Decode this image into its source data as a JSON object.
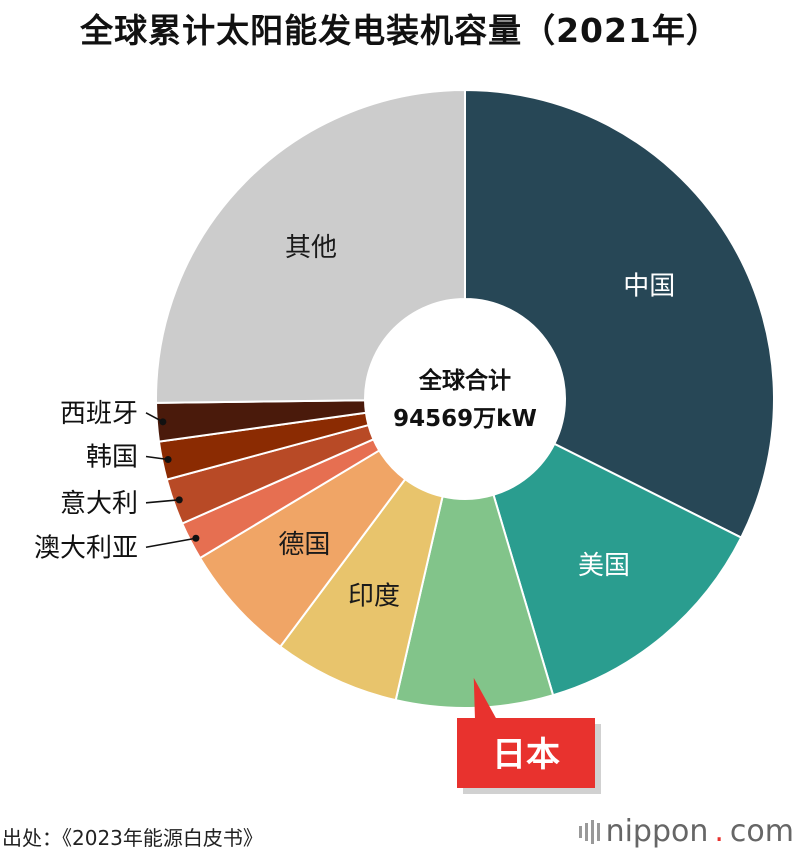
{
  "title": "全球累计太阳能发电装机容量（2021年）",
  "center": {
    "line1": "全球合计",
    "line2": "94569万kW"
  },
  "source": "出处：《2023年能源白皮书》",
  "logo": {
    "word": "nippon",
    "dot": ".",
    "tld": "com"
  },
  "highlight": {
    "label": "日本",
    "color": "#e8322e"
  },
  "chart_data": {
    "type": "pie",
    "title": "全球累计太阳能发电装机容量（2021年）",
    "subtitle": "全球合计 94569万kW",
    "slices": [
      {
        "label": "中国",
        "percent": 32.4,
        "color": "#274756"
      },
      {
        "label": "美国",
        "percent": 13.0,
        "color": "#2a9d8f"
      },
      {
        "label": "日本",
        "percent": 8.2,
        "color": "#82c48a"
      },
      {
        "label": "印度",
        "percent": 6.6,
        "color": "#e8c46c"
      },
      {
        "label": "德国",
        "percent": 6.2,
        "color": "#f0a566"
      },
      {
        "label": "澳大利亚",
        "percent": 2.0,
        "color": "#e66f51"
      },
      {
        "label": "意大利",
        "percent": 2.4,
        "color": "#b84a26"
      },
      {
        "label": "韩国",
        "percent": 2.0,
        "color": "#8b2b02"
      },
      {
        "label": "西班牙",
        "percent": 2.0,
        "color": "#4a1a0b"
      },
      {
        "label": "其他",
        "percent": 25.2,
        "color": "#cccccc"
      }
    ],
    "label_colors": {
      "中国": "#ffffff",
      "美国": "#ffffff",
      "日本": "#ffffff",
      "印度": "#1a1a1a",
      "德国": "#1a1a1a",
      "其他": "#1a1a1a"
    },
    "outside_labels": [
      "西班牙",
      "韩国",
      "意大利",
      "澳大利亚"
    ]
  }
}
